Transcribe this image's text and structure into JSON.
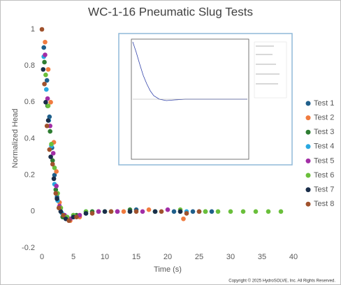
{
  "chart_data": {
    "type": "scatter",
    "title": "WC-1-16 Pneumatic Slug Tests",
    "x_label": "Time (s)",
    "y_label": "Normalized Head",
    "xlim": [
      0,
      40
    ],
    "xticks": [
      0,
      5,
      10,
      15,
      20,
      25,
      30,
      35,
      40
    ],
    "ylim": [
      -0.2,
      1
    ],
    "yticks": [
      -0.2,
      0,
      0.2,
      0.4,
      0.6,
      0.8,
      1
    ],
    "grid": false,
    "legend": "right",
    "series": [
      {
        "name": "Test 1",
        "color": "#1f5f8b",
        "x": [
          0.3,
          0.8,
          1.2,
          1.6,
          2.0,
          2.4,
          3,
          4,
          5,
          7,
          9,
          12,
          15,
          18,
          21,
          24,
          27
        ],
        "values": [
          0.9,
          0.72,
          0.52,
          0.35,
          0.2,
          0.08,
          0,
          -0.04,
          -0.03,
          -0.01,
          0,
          0,
          0.01,
          0,
          0,
          0,
          0
        ]
      },
      {
        "name": "Test 2",
        "color": "#f07b3f",
        "x": [
          0.5,
          1.0,
          1.4,
          1.9,
          2.3,
          2.8,
          3.5,
          4.5,
          6,
          9,
          13,
          17,
          22.5
        ],
        "values": [
          0.93,
          0.78,
          0.6,
          0.38,
          0.22,
          0.05,
          -0.02,
          -0.05,
          -0.03,
          0,
          0,
          0.01,
          -0.04
        ]
      },
      {
        "name": "Test 3",
        "color": "#2e7d32",
        "x": [
          0.4,
          0.9,
          1.3,
          1.7,
          2.2,
          2.7,
          3.3,
          4.2,
          5.5,
          8,
          11,
          14,
          18,
          22,
          26
        ],
        "values": [
          0.82,
          0.58,
          0.44,
          0.28,
          0.12,
          0.02,
          -0.03,
          -0.04,
          -0.02,
          0,
          0,
          0.01,
          0,
          0,
          0
        ]
      },
      {
        "name": "Test 4",
        "color": "#29a8e0",
        "x": [
          0.3,
          0.7,
          1.1,
          1.5,
          2.0,
          2.5,
          3.2,
          4,
          5,
          7,
          10,
          14,
          18,
          23
        ],
        "values": [
          0.85,
          0.67,
          0.5,
          0.36,
          0.15,
          0.06,
          -0.01,
          -0.03,
          -0.02,
          0,
          0,
          0,
          0,
          0
        ]
      },
      {
        "name": "Test 5",
        "color": "#a22ea6",
        "x": [
          0.5,
          0.9,
          1.3,
          1.8,
          2.3,
          2.8,
          3.6,
          4.5,
          6,
          9,
          12,
          16,
          20
        ],
        "values": [
          0.86,
          0.62,
          0.47,
          0.32,
          0.14,
          0.03,
          -0.02,
          -0.04,
          -0.02,
          0,
          0,
          0,
          0.01
        ]
      },
      {
        "name": "Test 6",
        "color": "#6abf3b",
        "x": [
          0.6,
          1.0,
          1.5,
          2.0,
          2.5,
          3,
          4,
          5,
          7,
          10,
          14,
          18,
          22,
          26,
          28,
          30,
          32,
          34,
          36,
          38
        ],
        "values": [
          0.75,
          0.58,
          0.37,
          0.24,
          0.1,
          0.02,
          -0.03,
          -0.02,
          0,
          0,
          0,
          0,
          0.01,
          0,
          0,
          0,
          0,
          0,
          0,
          0
        ]
      },
      {
        "name": "Test 7",
        "color": "#1a2e4a",
        "x": [
          0.2,
          0.6,
          1.0,
          1.4,
          1.9,
          2.4,
          3,
          3.8,
          5,
          7,
          10,
          14,
          18,
          22,
          25
        ],
        "values": [
          0.78,
          0.6,
          0.5,
          0.3,
          0.18,
          0.07,
          0,
          -0.04,
          -0.03,
          -0.01,
          0,
          0,
          0,
          0,
          0
        ]
      },
      {
        "name": "Test 8",
        "color": "#a0522d",
        "x": [
          0,
          0.4,
          0.8,
          1.2,
          1.7,
          2.2,
          2.7,
          3.4,
          4.3,
          5.5,
          8,
          11,
          15,
          19,
          23,
          25
        ],
        "values": [
          1,
          0.7,
          0.47,
          0.34,
          0.26,
          0.1,
          0.02,
          -0.02,
          -0.05,
          -0.03,
          -0.01,
          0,
          0,
          0,
          -0.01,
          0
        ]
      }
    ]
  },
  "footer": "Copyright © 2025 HydroSOLVE, Inc. All Rights Reserved."
}
